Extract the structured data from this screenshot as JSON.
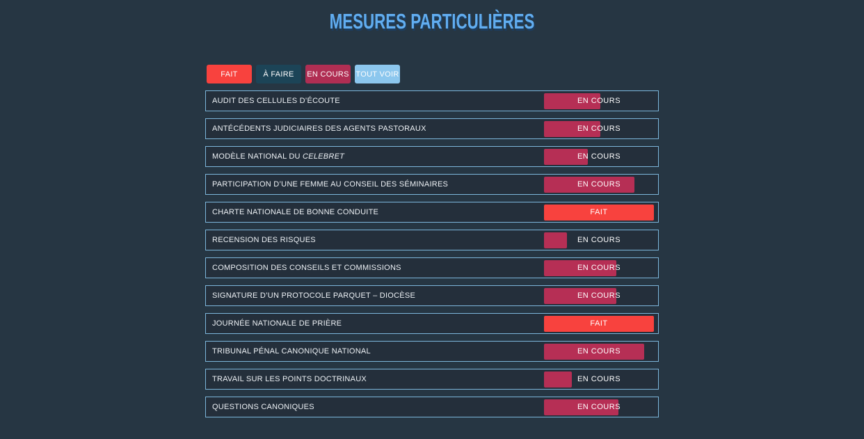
{
  "page": {
    "title": "MESURES PARTICULIÈRES",
    "background_color": "#263643",
    "title_color": "#61adf0",
    "row_border_color": "#7db7dc"
  },
  "filters": [
    {
      "label": "FAIT",
      "color": "#f8423e"
    },
    {
      "label": "À FAIRE",
      "color": "#1c4457"
    },
    {
      "label": "EN COURS",
      "color": "#b02e53"
    },
    {
      "label": "TOUT VOIR",
      "color": "#8cc7ee"
    }
  ],
  "status_colors": {
    "EN COURS": "#b62f55",
    "FAIT": "#f8423e"
  },
  "measures": [
    {
      "parts": [
        {
          "text": "AUDIT DES CELLULES D’ÉCOUTE",
          "italic": false
        }
      ],
      "label": "AUDIT DES CELLULES D’ÉCOUTE",
      "status": "EN COURS",
      "progress": 51
    },
    {
      "parts": [
        {
          "text": "ANTÉCÉDENTS JUDICIAIRES DES AGENTS PASTORAUX",
          "italic": false
        }
      ],
      "label": "ANTÉCÉDENTS JUDICIAIRES DES AGENTS PASTORAUX",
      "status": "EN COURS",
      "progress": 51
    },
    {
      "parts": [
        {
          "text": "MODÈLE NATIONAL DU ",
          "italic": false
        },
        {
          "text": "CELEBRET",
          "italic": true
        }
      ],
      "label": "MODÈLE NATIONAL DU CELEBRET",
      "status": "EN COURS",
      "progress": 40
    },
    {
      "parts": [
        {
          "text": "PARTICIPATION D’UNE FEMME AU CONSEIL DES SÉMINAIRES",
          "italic": false
        }
      ],
      "label": "PARTICIPATION D’UNE FEMME AU CONSEIL DES SÉMINAIRES",
      "status": "EN COURS",
      "progress": 82
    },
    {
      "parts": [
        {
          "text": "CHARTE NATIONALE DE BONNE CONDUITE",
          "italic": false
        }
      ],
      "label": "CHARTE NATIONALE DE BONNE CONDUITE",
      "status": "FAIT",
      "progress": 100
    },
    {
      "parts": [
        {
          "text": "RECENSION DES RISQUES",
          "italic": false
        }
      ],
      "label": "RECENSION DES RISQUES",
      "status": "EN COURS",
      "progress": 21
    },
    {
      "parts": [
        {
          "text": "COMPOSITION DES CONSEILS ET COMMISSIONS",
          "italic": false
        }
      ],
      "label": "COMPOSITION DES CONSEILS ET COMMISSIONS",
      "status": "EN COURS",
      "progress": 66
    },
    {
      "parts": [
        {
          "text": "SIGNATURE D’UN PROTOCOLE PARQUET – DIOCÈSE",
          "italic": false
        }
      ],
      "label": "SIGNATURE D’UN PROTOCOLE PARQUET – DIOCÈSE",
      "status": "EN COURS",
      "progress": 66
    },
    {
      "parts": [
        {
          "text": "JOURNÉE NATIONALE DE PRIÈRE",
          "italic": false
        }
      ],
      "label": "JOURNÉE NATIONALE DE PRIÈRE",
      "status": "FAIT",
      "progress": 100
    },
    {
      "parts": [
        {
          "text": "TRIBUNAL PÉNAL CANONIQUE NATIONAL",
          "italic": false
        }
      ],
      "label": "TRIBUNAL PÉNAL CANONIQUE NATIONAL",
      "status": "EN COURS",
      "progress": 91
    },
    {
      "parts": [
        {
          "text": "TRAVAIL SUR LES POINTS DOCTRINAUX",
          "italic": false
        }
      ],
      "label": "TRAVAIL SUR LES POINTS DOCTRINAUX",
      "status": "EN COURS",
      "progress": 25
    },
    {
      "parts": [
        {
          "text": "QUESTIONS CANONIQUES",
          "italic": false
        }
      ],
      "label": "QUESTIONS CANONIQUES",
      "status": "EN COURS",
      "progress": 68
    }
  ]
}
